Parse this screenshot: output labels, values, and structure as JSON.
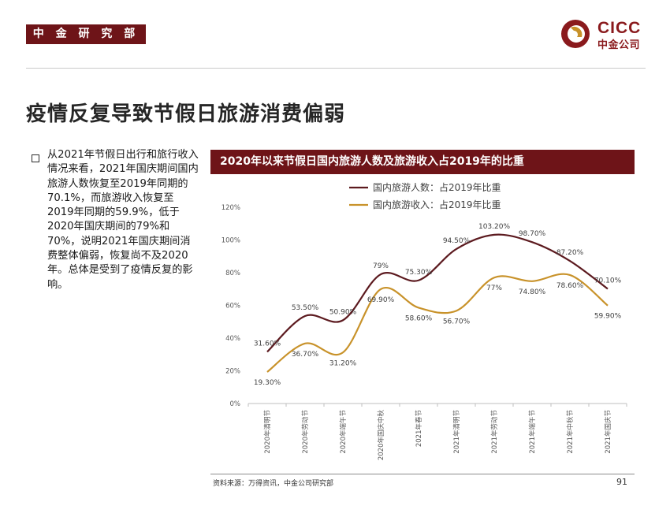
{
  "header": {
    "tag": "中 金 研 究 部",
    "logo_en": "CICC",
    "logo_cn": "中金公司"
  },
  "title": "疫情反复导致节假日旅游消费偏弱",
  "bullet": "从2021年节假日出行和旅行收入情况来看，2021年国庆期间国内旅游人数恢复至2019年同期的70.1%，而旅游收入恢复至2019年同期的59.9%，低于2020年国庆期间的79%和70%，说明2021年国庆期间消费整体偏弱，恢复尚不及2020年。总体是受到了疫情反复的影响。",
  "footer": {
    "source": "资料来源：万得资讯，中金公司研究部",
    "page": "91"
  },
  "colors": {
    "brand": "#6e1418",
    "series1": "#5c1a1f",
    "series2": "#c8922a"
  },
  "chart_data": {
    "type": "line",
    "title": "2020年以来节假日国内旅游人数及旅游收入占2019年的比重",
    "categories": [
      "2020年清明节",
      "2020年劳动节",
      "2020年端午节",
      "2020年国庆中秋",
      "2021年春节",
      "2021年清明节",
      "2021年劳动节",
      "2021年端午节",
      "2021年中秋节",
      "2021年国庆节"
    ],
    "ylim": [
      0,
      120
    ],
    "yticks": [
      "0%",
      "20%",
      "40%",
      "60%",
      "80%",
      "100%",
      "120%"
    ],
    "legend_position": "top",
    "series": [
      {
        "name": "国内旅游人数：占2019年比重",
        "values": [
          31.6,
          53.5,
          50.9,
          79,
          75.3,
          94.5,
          103.2,
          98.7,
          87.2,
          70.1
        ],
        "labels": [
          "31.60%",
          "53.50%",
          "50.90%",
          "79%",
          "75.30%",
          "94.50%",
          "103.20%",
          "98.70%",
          "87.20%",
          "70.10%"
        ]
      },
      {
        "name": "国内旅游收入：占2019年比重",
        "values": [
          19.3,
          36.7,
          31.2,
          69.9,
          58.6,
          56.7,
          77,
          74.8,
          78.6,
          59.9
        ],
        "labels": [
          "19.30%",
          "36.70%",
          "31.20%",
          "69.90%",
          "58.60%",
          "56.70%",
          "77%",
          "74.80%",
          "78.60%",
          "59.90%"
        ]
      }
    ]
  }
}
